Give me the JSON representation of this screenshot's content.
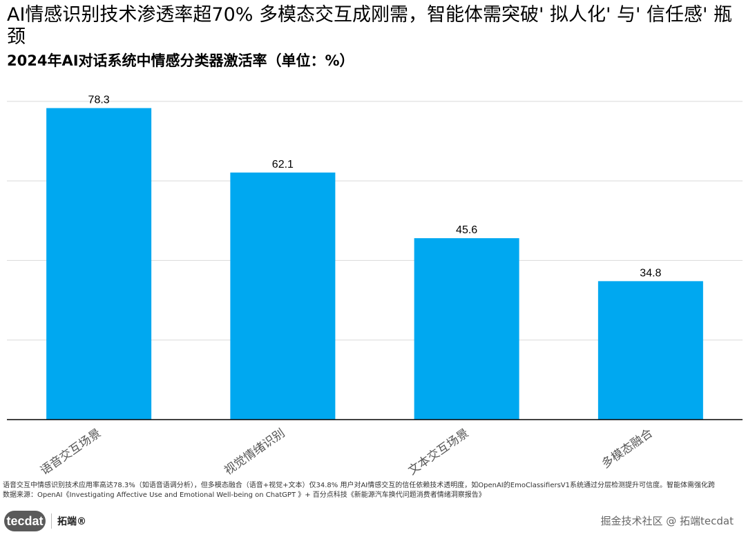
{
  "header": {
    "title": "AI情感识别技术渗透率超70%  多模态交互成刚需，智能体需突破' 拟人化' 与' 信任感' 瓶颈",
    "subtitle": "2024年AI对话系统中情感分类器激活率（单位：%）"
  },
  "chart_data": {
    "type": "bar",
    "title": "2024年AI对话系统中情感分类器激活率（单位：%）",
    "categories": [
      "语音交互场景",
      "视觉情绪识别",
      "文本交互场景",
      "多模态融合"
    ],
    "values": [
      78.3,
      62.1,
      45.6,
      34.8
    ],
    "value_labels": [
      "78.3",
      "62.1",
      "45.6",
      "34.8"
    ],
    "xlabel": "",
    "ylabel": "",
    "ylim": [
      0,
      85
    ],
    "grid": true,
    "bar_color": "#00A8F0"
  },
  "footer": {
    "note_line1": "语音交互中情感识别技术应用率高达78.3%（如语音语调分析），但多模态融合（语音+视觉+文本）仅34.8%  用户对AI情感交互的信任依赖技术透明度，如OpenAI的EmoClassifiersV1系统通过分层检测提升可信度。智能体需强化跨",
    "note_line2": "数据来源：OpenAI《Investigating Affective Use and Emotional Well-being on ChatGPT        》+ 百分点科技《新能源汽车换代问题消费者情绪洞察报告》",
    "logo_text": "tecdat",
    "logo_cn": "拓端®",
    "watermark": "掘金技术社区 @ 拓端tecdat"
  }
}
